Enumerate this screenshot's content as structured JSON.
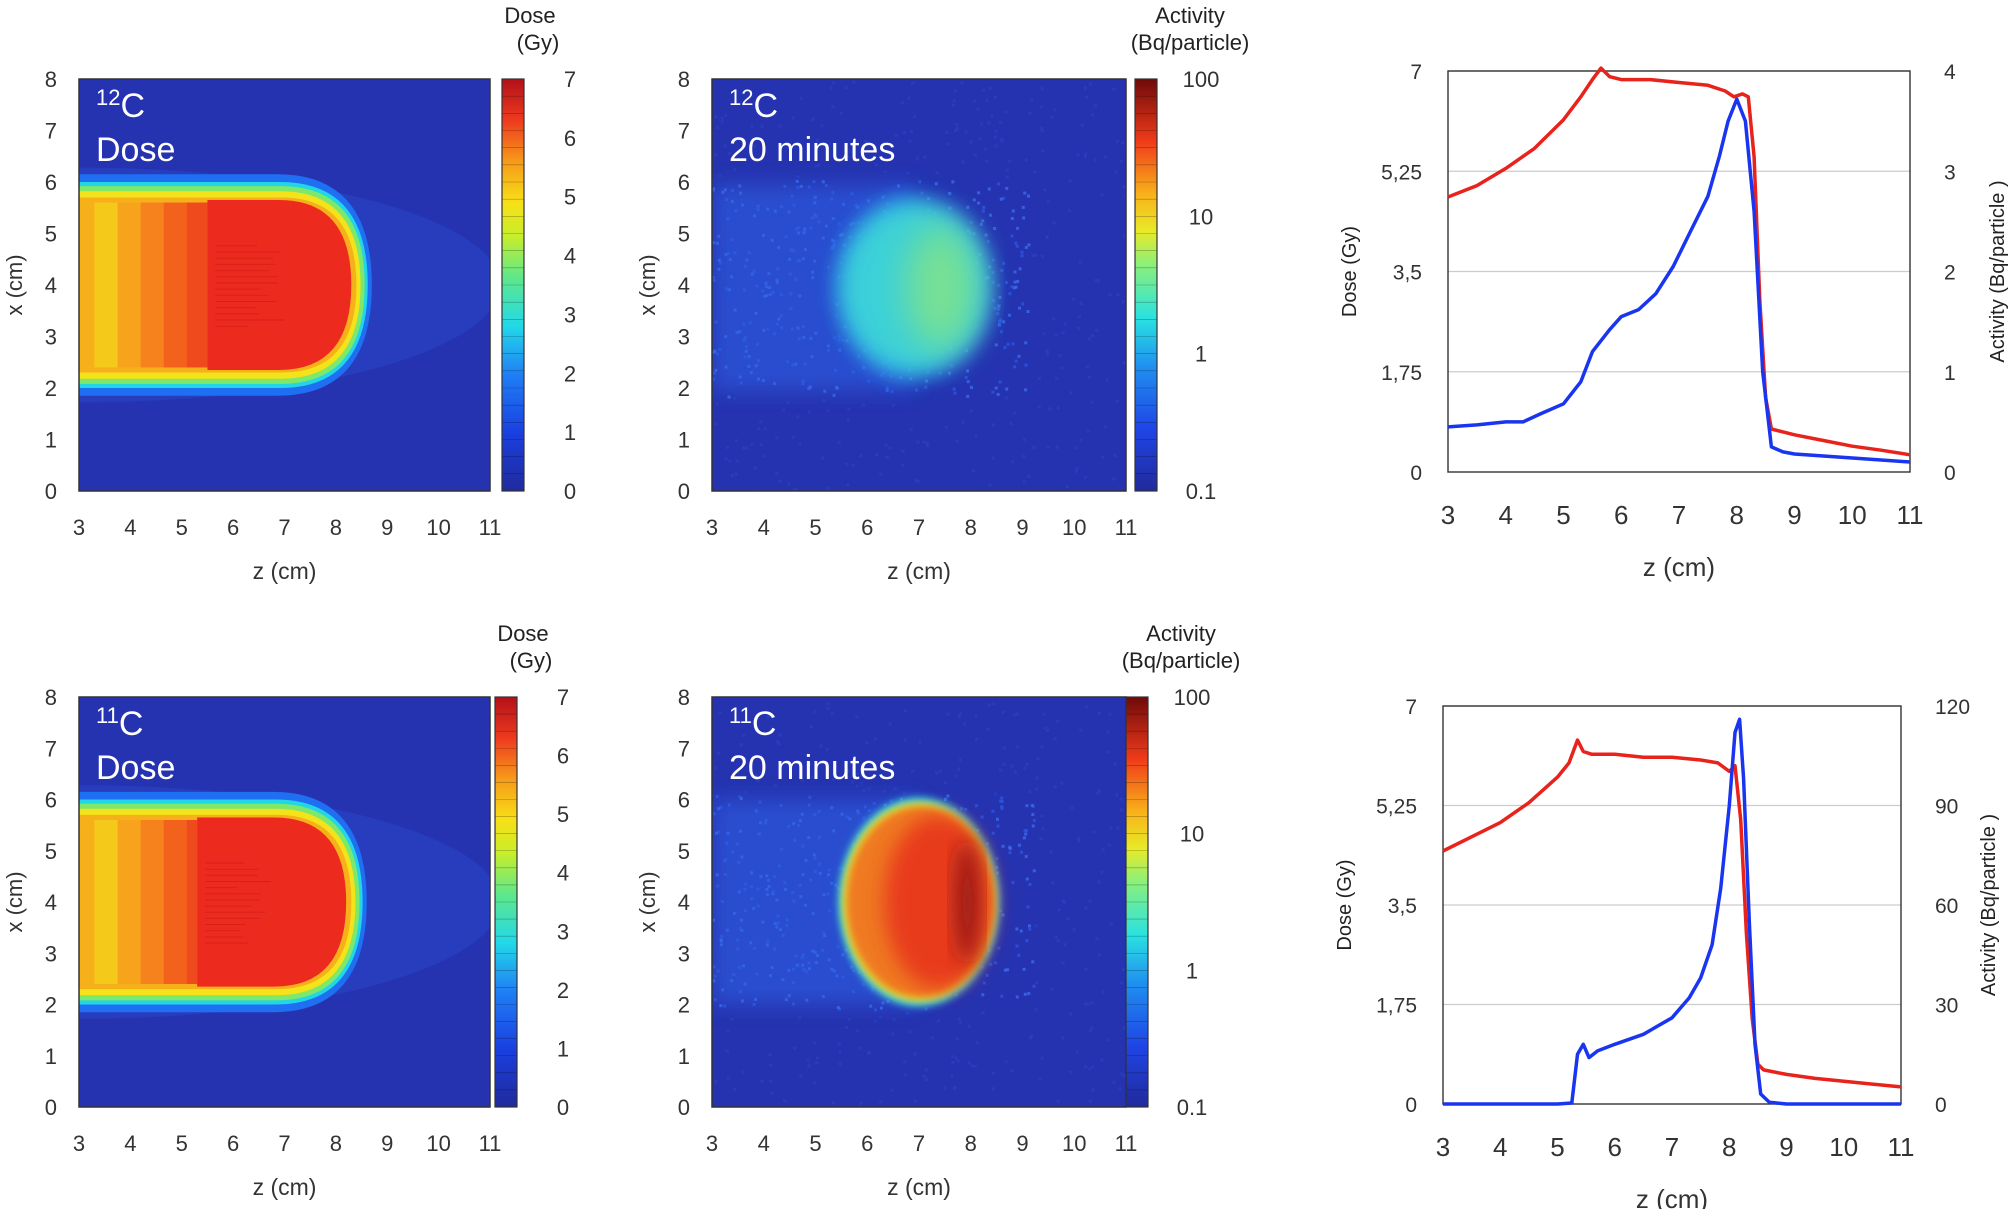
{
  "colors": {
    "dose_line": "#e8231c",
    "activity_line": "#1a35f0",
    "map_background": "#2533b0",
    "grid": "#cccccc"
  },
  "chart_data": [
    {
      "type": "heatmap",
      "id": "p1",
      "nuclide_mass": "12",
      "nuclide_symbol": "C",
      "panel_label": "Dose",
      "quantity": "dose",
      "xlabel": "z (cm)",
      "ylabel": "x (cm)",
      "xlim": [
        3,
        11
      ],
      "ylim": [
        0,
        8
      ],
      "xticks": [
        "3",
        "4",
        "5",
        "6",
        "7",
        "8",
        "9",
        "10",
        "11"
      ],
      "yticks": [
        "0",
        "1",
        "2",
        "3",
        "4",
        "5",
        "6",
        "7",
        "8"
      ],
      "colorbar_title": [
        "Dose",
        "(Gy)"
      ],
      "colorbar_scale": "linear",
      "colorbar_range": [
        0,
        7
      ],
      "colorbar_ticks": [
        "0",
        "1",
        "2",
        "3",
        "4",
        "5",
        "6",
        "7"
      ],
      "field": {
        "entrance_halfwidth_cm": 1.7,
        "peak_start_cm": 5.5,
        "distal_edge_cm": 8.4,
        "center_x_cm": 4
      }
    },
    {
      "type": "heatmap",
      "id": "p2",
      "nuclide_mass": "12",
      "nuclide_symbol": "C",
      "panel_label": "20 minutes",
      "quantity": "activity",
      "xlabel": "z (cm)",
      "ylabel": "x (cm)",
      "xlim": [
        3,
        11
      ],
      "ylim": [
        0,
        8
      ],
      "xticks": [
        "3",
        "4",
        "5",
        "6",
        "7",
        "8",
        "9",
        "10",
        "11"
      ],
      "yticks": [
        "0",
        "1",
        "2",
        "3",
        "4",
        "5",
        "6",
        "7",
        "8"
      ],
      "colorbar_title": [
        "Activity",
        "(Bq/particle)"
      ],
      "colorbar_scale": "log",
      "colorbar_range": [
        0.1,
        100
      ],
      "colorbar_ticks": [
        "0.1",
        "1",
        "10",
        "100"
      ],
      "blob": {
        "center_z_cm": 6.9,
        "center_x_cm": 3.95,
        "radius_z_cm": 1.5,
        "radius_x_cm": 1.75,
        "activity_level": 2.5
      }
    },
    {
      "type": "line",
      "id": "p3",
      "xlabel": "z (cm)",
      "ylabel_left": "Dose (Gy)",
      "ylabel_right": "Activity (Bq/particle )",
      "xlim": [
        3,
        11
      ],
      "ylim_left": [
        0,
        7
      ],
      "ylim_right": [
        0,
        4
      ],
      "xticks": [
        "3",
        "4",
        "5",
        "6",
        "7",
        "8",
        "9",
        "10",
        "11"
      ],
      "yticks_left": [
        "0",
        "1,75",
        "3,5",
        "5,25",
        "7"
      ],
      "yticks_right": [
        "0",
        "1",
        "2",
        "3",
        "4"
      ],
      "series": [
        {
          "name": "Dose",
          "axis": "left",
          "color": "#e8231c",
          "x": [
            3.0,
            3.5,
            4.0,
            4.5,
            5.0,
            5.3,
            5.5,
            5.65,
            5.8,
            6.0,
            6.5,
            7.0,
            7.5,
            7.8,
            7.95,
            8.1,
            8.2,
            8.3,
            8.4,
            8.5,
            8.6,
            9.0,
            9.5,
            10.0,
            10.5,
            11.0
          ],
          "y": [
            4.8,
            5.0,
            5.3,
            5.65,
            6.15,
            6.55,
            6.85,
            7.05,
            6.9,
            6.85,
            6.85,
            6.8,
            6.75,
            6.65,
            6.55,
            6.6,
            6.55,
            5.5,
            3.0,
            1.3,
            0.75,
            0.65,
            0.55,
            0.45,
            0.38,
            0.3
          ]
        },
        {
          "name": "Activity",
          "axis": "right",
          "color": "#1a35f0",
          "x": [
            3.0,
            3.5,
            4.0,
            4.3,
            4.6,
            5.0,
            5.3,
            5.5,
            5.8,
            6.0,
            6.3,
            6.6,
            6.9,
            7.2,
            7.5,
            7.7,
            7.85,
            8.0,
            8.15,
            8.3,
            8.45,
            8.6,
            8.8,
            9.0,
            9.5,
            10.0,
            10.5,
            11.0
          ],
          "y": [
            0.45,
            0.47,
            0.5,
            0.5,
            0.58,
            0.68,
            0.9,
            1.2,
            1.42,
            1.55,
            1.62,
            1.78,
            2.05,
            2.4,
            2.75,
            3.15,
            3.5,
            3.72,
            3.5,
            2.6,
            1.0,
            0.25,
            0.2,
            0.18,
            0.16,
            0.14,
            0.12,
            0.1
          ]
        }
      ]
    },
    {
      "type": "heatmap",
      "id": "p4",
      "nuclide_mass": "11",
      "nuclide_symbol": "C",
      "panel_label": "Dose",
      "quantity": "dose",
      "xlabel": "z (cm)",
      "ylabel": "x (cm)",
      "xlim": [
        3,
        11
      ],
      "ylim": [
        0,
        8
      ],
      "xticks": [
        "3",
        "4",
        "5",
        "6",
        "7",
        "8",
        "9",
        "10",
        "11"
      ],
      "yticks": [
        "0",
        "1",
        "2",
        "3",
        "4",
        "5",
        "6",
        "7",
        "8"
      ],
      "colorbar_title": [
        "Dose",
        "(Gy)"
      ],
      "colorbar_scale": "linear",
      "colorbar_range": [
        0,
        7
      ],
      "colorbar_ticks": [
        "0",
        "1",
        "2",
        "3",
        "4",
        "5",
        "6",
        "7"
      ],
      "field": {
        "entrance_halfwidth_cm": 1.7,
        "peak_start_cm": 5.3,
        "distal_edge_cm": 8.3,
        "center_x_cm": 4
      }
    },
    {
      "type": "heatmap",
      "id": "p5",
      "nuclide_mass": "11",
      "nuclide_symbol": "C",
      "panel_label": "20 minutes",
      "quantity": "activity",
      "xlabel": "z (cm)",
      "ylabel": "x (cm)",
      "xlim": [
        3,
        11
      ],
      "ylim": [
        0,
        8
      ],
      "xticks": [
        "3",
        "4",
        "5",
        "6",
        "7",
        "8",
        "9",
        "10",
        "11"
      ],
      "yticks": [
        "0",
        "1",
        "2",
        "3",
        "4",
        "5",
        "6",
        "7",
        "8"
      ],
      "colorbar_title": [
        "Activity",
        "(Bq/particle)"
      ],
      "colorbar_scale": "log",
      "colorbar_range": [
        0.1,
        100
      ],
      "colorbar_ticks": [
        "0.1",
        "1",
        "10",
        "100"
      ],
      "blob": {
        "center_z_cm": 7.0,
        "center_x_cm": 4.0,
        "radius_z_cm": 1.5,
        "radius_x_cm": 2.0,
        "activity_level": 60
      }
    },
    {
      "type": "line",
      "id": "p6",
      "xlabel": "z (cm)",
      "ylabel_left": "Dose (Gy)",
      "ylabel_right": "Activity (Bq/particle )",
      "xlim": [
        3,
        11
      ],
      "ylim_left": [
        0,
        7
      ],
      "ylim_right": [
        0,
        120
      ],
      "xticks": [
        "3",
        "4",
        "5",
        "6",
        "7",
        "8",
        "9",
        "10",
        "11"
      ],
      "yticks_left": [
        "0",
        "1,75",
        "3,5",
        "5,25",
        "7"
      ],
      "yticks_right": [
        "0",
        "30",
        "60",
        "90",
        "120"
      ],
      "series": [
        {
          "name": "Dose",
          "axis": "left",
          "color": "#e8231c",
          "x": [
            3.0,
            3.5,
            4.0,
            4.5,
            5.0,
            5.2,
            5.35,
            5.45,
            5.6,
            6.0,
            6.5,
            7.0,
            7.5,
            7.8,
            8.0,
            8.1,
            8.2,
            8.3,
            8.4,
            8.5,
            8.6,
            9.0,
            9.5,
            10.0,
            10.5,
            11.0
          ],
          "y": [
            4.45,
            4.7,
            4.95,
            5.3,
            5.75,
            6.0,
            6.4,
            6.2,
            6.15,
            6.15,
            6.1,
            6.1,
            6.05,
            6.0,
            5.85,
            5.95,
            5.0,
            3.0,
            1.5,
            0.7,
            0.6,
            0.52,
            0.45,
            0.4,
            0.35,
            0.3
          ]
        },
        {
          "name": "Activity",
          "axis": "right",
          "color": "#1a35f0",
          "x": [
            3.0,
            4.0,
            5.0,
            5.25,
            5.35,
            5.45,
            5.55,
            5.7,
            6.0,
            6.5,
            7.0,
            7.3,
            7.5,
            7.7,
            7.85,
            8.0,
            8.1,
            8.18,
            8.25,
            8.35,
            8.45,
            8.55,
            8.7,
            9.0,
            10.0,
            11.0
          ],
          "y": [
            0,
            0,
            0,
            0.3,
            15,
            18,
            14,
            16,
            18,
            21,
            26,
            32,
            38,
            48,
            65,
            90,
            112,
            116,
            98,
            55,
            18,
            3,
            0.5,
            0,
            0,
            0
          ]
        }
      ]
    }
  ]
}
